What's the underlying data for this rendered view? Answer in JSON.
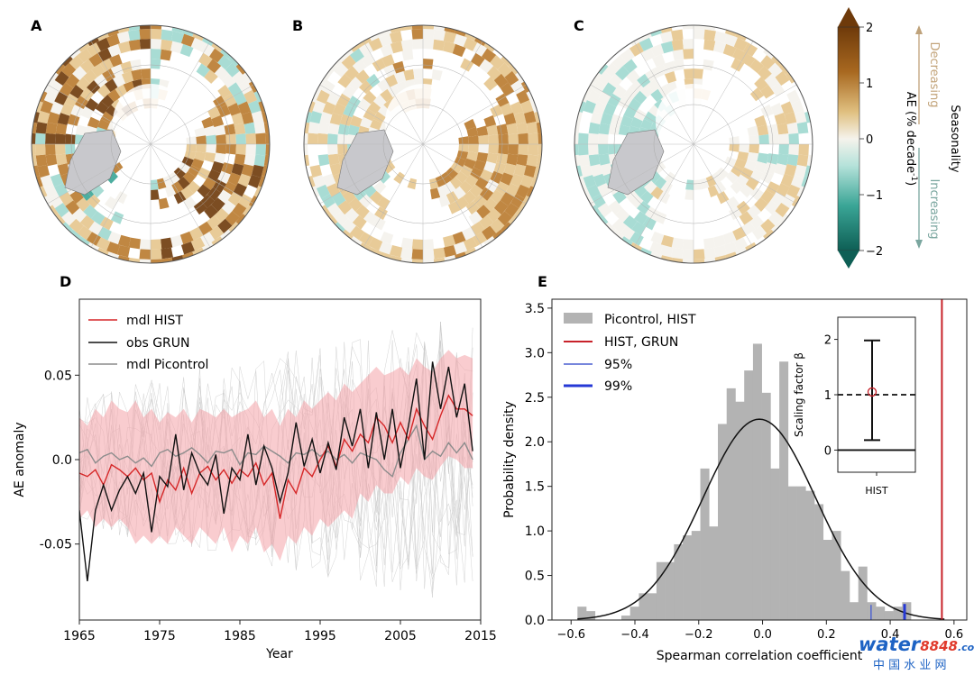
{
  "panel_labels": [
    "A",
    "B",
    "C",
    "D",
    "E"
  ],
  "colors": {
    "hist_line": "#d62728",
    "hist_band": "#f4a3a8",
    "obs_line": "#111111",
    "picontrol_line": "#8c8c8c",
    "picontrol_members": "#c8c8c8",
    "bars": "#b3b3b3",
    "normal": "#111111",
    "grun_vline": "#c8222a",
    "p95": "#4a5fd0",
    "p99": "#2538d6",
    "brown_dark": "#6e3a0a",
    "brown": "#b97a2e",
    "tan": "#e5c58d",
    "neutral": "#f4f2ec",
    "teal_light": "#9fd8cf",
    "teal": "#3aa596",
    "teal_dark": "#0e5f55",
    "greenland": "#c8c8cc"
  },
  "colorbar": {
    "label_main": "AE (% decade",
    "label_sup": "-1",
    "label_close": ")",
    "ticks": [
      "2",
      "1",
      "0",
      "−1",
      "−2"
    ],
    "tick_values": [
      2,
      1,
      0,
      -1,
      -2
    ],
    "side_title": "Seasonality",
    "upper_label": "Decreasing",
    "lower_label": "Increasing"
  },
  "chart_data": [
    {
      "type": "line",
      "panel": "D",
      "xlabel": "Year",
      "ylabel": "AE anomaly",
      "xlim": [
        1965,
        2015
      ],
      "ylim": [
        -0.095,
        0.095
      ],
      "x_ticks": [
        "1965",
        "1975",
        "1985",
        "1995",
        "2005",
        "2015"
      ],
      "x_tick_values": [
        1965,
        1975,
        1985,
        1995,
        2005,
        2015
      ],
      "y_ticks": [
        "0.05",
        "0.0",
        "-0.05"
      ],
      "y_tick_values": [
        0.05,
        0.0,
        -0.05
      ],
      "legend_position": "top-left",
      "x": [
        1965,
        1966,
        1967,
        1968,
        1969,
        1970,
        1971,
        1972,
        1973,
        1974,
        1975,
        1976,
        1977,
        1978,
        1979,
        1980,
        1981,
        1982,
        1983,
        1984,
        1985,
        1986,
        1987,
        1988,
        1989,
        1990,
        1991,
        1992,
        1993,
        1994,
        1995,
        1996,
        1997,
        1998,
        1999,
        2000,
        2001,
        2002,
        2003,
        2004,
        2005,
        2006,
        2007,
        2008,
        2009,
        2010,
        2011,
        2012,
        2013,
        2014
      ],
      "series": [
        {
          "name": "mdl HIST",
          "values": [
            -0.008,
            -0.01,
            -0.006,
            -0.015,
            -0.003,
            -0.006,
            -0.01,
            -0.005,
            -0.012,
            -0.008,
            -0.025,
            -0.012,
            -0.018,
            -0.005,
            -0.02,
            -0.008,
            -0.004,
            -0.012,
            -0.006,
            -0.014,
            -0.006,
            -0.01,
            -0.002,
            -0.015,
            -0.008,
            -0.035,
            -0.012,
            -0.02,
            -0.005,
            -0.01,
            0.0,
            0.008,
            -0.004,
            0.012,
            0.005,
            0.015,
            0.01,
            0.025,
            0.02,
            0.01,
            0.022,
            0.012,
            0.03,
            0.02,
            0.012,
            0.026,
            0.038,
            0.03,
            0.03,
            0.026
          ]
        },
        {
          "name": "obs GRUN",
          "values": [
            -0.03,
            -0.072,
            -0.03,
            -0.015,
            -0.03,
            -0.018,
            -0.01,
            -0.02,
            -0.008,
            -0.043,
            -0.01,
            -0.016,
            0.015,
            -0.018,
            0.004,
            -0.008,
            -0.015,
            0.003,
            -0.032,
            -0.005,
            -0.012,
            0.015,
            -0.015,
            0.008,
            -0.005,
            -0.025,
            -0.008,
            0.022,
            -0.004,
            0.012,
            -0.008,
            0.01,
            -0.006,
            0.025,
            0.008,
            0.03,
            -0.005,
            0.028,
            0.0,
            0.03,
            -0.005,
            0.02,
            0.048,
            0.0,
            0.058,
            0.03,
            0.055,
            0.025,
            0.045,
            0.005
          ]
        },
        {
          "name": "mdl Picontrol",
          "values": [
            0.004,
            0.006,
            -0.002,
            0.002,
            0.004,
            0.0,
            0.002,
            -0.002,
            0.001,
            -0.004,
            0.004,
            0.006,
            0.002,
            0.004,
            0.007,
            0.003,
            -0.002,
            0.005,
            0.004,
            0.006,
            -0.003,
            0.004,
            0.003,
            0.008,
            0.005,
            0.002,
            -0.002,
            0.004,
            0.003,
            0.006,
            0.002,
            0.005,
            0.0,
            0.003,
            -0.002,
            0.004,
            0.002,
            0.0,
            -0.006,
            -0.01,
            0.004,
            0.012,
            0.02,
            0.0,
            0.005,
            0.002,
            0.01,
            0.004,
            0.01,
            0.0
          ]
        }
      ],
      "band": {
        "lower": [
          -0.035,
          -0.03,
          -0.04,
          -0.035,
          -0.04,
          -0.035,
          -0.04,
          -0.05,
          -0.045,
          -0.05,
          -0.045,
          -0.05,
          -0.04,
          -0.045,
          -0.05,
          -0.04,
          -0.045,
          -0.05,
          -0.04,
          -0.055,
          -0.045,
          -0.05,
          -0.04,
          -0.055,
          -0.05,
          -0.06,
          -0.045,
          -0.05,
          -0.04,
          -0.045,
          -0.035,
          -0.04,
          -0.035,
          -0.03,
          -0.035,
          -0.02,
          -0.025,
          -0.015,
          -0.02,
          -0.02,
          -0.01,
          -0.015,
          -0.005,
          -0.01,
          -0.012,
          -0.004,
          0.002,
          0.0,
          -0.005,
          -0.005
        ],
        "upper": [
          0.025,
          0.02,
          0.03,
          0.025,
          0.035,
          0.03,
          0.028,
          0.035,
          0.025,
          0.03,
          0.022,
          0.028,
          0.025,
          0.03,
          0.022,
          0.03,
          0.028,
          0.025,
          0.03,
          0.025,
          0.028,
          0.03,
          0.035,
          0.025,
          0.03,
          0.02,
          0.03,
          0.025,
          0.035,
          0.03,
          0.035,
          0.04,
          0.035,
          0.045,
          0.04,
          0.045,
          0.05,
          0.055,
          0.05,
          0.052,
          0.055,
          0.05,
          0.06,
          0.055,
          0.052,
          0.06,
          0.065,
          0.06,
          0.062,
          0.06
        ]
      }
    },
    {
      "type": "bar",
      "panel": "E",
      "xlabel": "Spearman correlation coefficient",
      "ylabel": "Probability density",
      "xlim": [
        -0.66,
        0.64
      ],
      "ylim": [
        0,
        3.6
      ],
      "x_ticks": [
        "−0.6",
        "−0.4",
        "−0.2",
        "0.0",
        "0.2",
        "0.4",
        "0.6"
      ],
      "x_tick_values": [
        -0.6,
        -0.4,
        -0.2,
        0.0,
        0.2,
        0.4,
        0.6
      ],
      "y_ticks": [
        "0.0",
        "0.5",
        "1.0",
        "1.5",
        "2.0",
        "2.5",
        "3.0",
        "3.5"
      ],
      "y_tick_values": [
        0,
        0.5,
        1,
        1.5,
        2,
        2.5,
        3,
        3.5
      ],
      "legend_position": "top-left",
      "series": [
        {
          "name": "Picontrol, HIST",
          "bin_width": 0.0275,
          "bin_starts": [
            -0.58,
            -0.5525,
            -0.525,
            -0.4975,
            -0.47,
            -0.4425,
            -0.415,
            -0.3875,
            -0.36,
            -0.3325,
            -0.305,
            -0.2775,
            -0.25,
            -0.2225,
            -0.195,
            -0.1675,
            -0.14,
            -0.1125,
            -0.085,
            -0.0575,
            -0.03,
            -0.0025,
            0.025,
            0.0525,
            0.08,
            0.1075,
            0.135,
            0.1625,
            0.19,
            0.2175,
            0.245,
            0.2725,
            0.3,
            0.3275,
            0.355,
            0.3825,
            0.41,
            0.4375
          ],
          "values": [
            0.15,
            0.1,
            0.0,
            0.0,
            0.0,
            0.05,
            0.15,
            0.3,
            0.3,
            0.65,
            0.65,
            0.85,
            0.95,
            1.0,
            1.7,
            1.05,
            2.2,
            2.6,
            2.45,
            2.8,
            3.1,
            2.55,
            1.7,
            2.9,
            1.5,
            1.5,
            1.45,
            1.3,
            0.9,
            1.0,
            0.55,
            0.2,
            0.6,
            0.2,
            0.15,
            0.1,
            0.15,
            0.2
          ]
        },
        {
          "name": "HIST, GRUN",
          "value": 0.562
        },
        {
          "name": "95%",
          "value": 0.34
        },
        {
          "name": "99%",
          "value": 0.445
        }
      ],
      "normal_fit": {
        "mean": -0.01,
        "sd": 0.177
      }
    },
    {
      "type": "scatter",
      "panel": "E-inset",
      "ylabel": "Scaling factor β",
      "categories": [
        "HIST"
      ],
      "ylim": [
        -0.4,
        2.4
      ],
      "y_ticks": [
        "2",
        "1",
        "0"
      ],
      "y_tick_values": [
        2,
        1,
        0
      ],
      "estimate": 1.05,
      "ci": [
        0.18,
        1.98
      ],
      "reference_lines": [
        1,
        0
      ]
    }
  ],
  "watermark": {
    "text_main": "water",
    "text_num": "8848",
    "text_domain": ".com",
    "text_cn": "中 国 水 业 网"
  }
}
